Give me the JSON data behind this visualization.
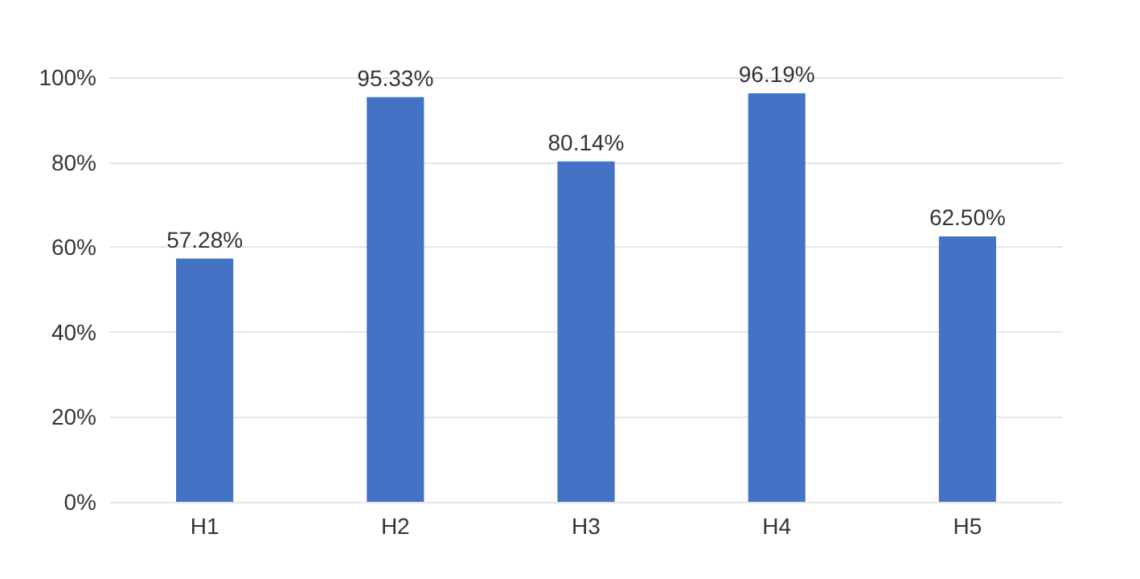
{
  "chart_data": {
    "type": "bar",
    "categories": [
      "H1",
      "H2",
      "H3",
      "H4",
      "H5"
    ],
    "values": [
      57.28,
      95.33,
      80.14,
      96.19,
      62.5
    ],
    "value_labels": [
      "57.28%",
      "95.33%",
      "80.14%",
      "96.19%",
      "62.50%"
    ],
    "color": "#4472c4",
    "ylim": [
      0,
      100
    ],
    "yticks": [
      {
        "value": 0,
        "label": "0%"
      },
      {
        "value": 20,
        "label": "20%"
      },
      {
        "value": 40,
        "label": "40%"
      },
      {
        "value": 60,
        "label": "60%"
      },
      {
        "value": 80,
        "label": "80%"
      },
      {
        "value": 100,
        "label": "100%"
      }
    ],
    "grid": "y"
  }
}
